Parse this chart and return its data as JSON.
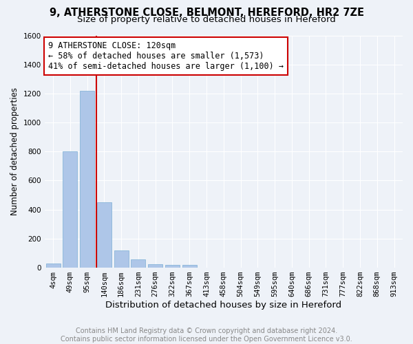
{
  "title1": "9, ATHERSTONE CLOSE, BELMONT, HEREFORD, HR2 7ZE",
  "title2": "Size of property relative to detached houses in Hereford",
  "xlabel": "Distribution of detached houses by size in Hereford",
  "ylabel": "Number of detached properties",
  "categories": [
    "4sqm",
    "49sqm",
    "95sqm",
    "140sqm",
    "186sqm",
    "231sqm",
    "276sqm",
    "322sqm",
    "367sqm",
    "413sqm",
    "458sqm",
    "504sqm",
    "549sqm",
    "595sqm",
    "640sqm",
    "686sqm",
    "731sqm",
    "777sqm",
    "822sqm",
    "868sqm",
    "913sqm"
  ],
  "values": [
    30,
    800,
    1220,
    450,
    120,
    55,
    25,
    20,
    20,
    0,
    0,
    0,
    0,
    0,
    0,
    0,
    0,
    0,
    0,
    0,
    0
  ],
  "bar_color": "#aec6e8",
  "bar_edgecolor": "#7aaed4",
  "vline_color": "#cc0000",
  "ylim": [
    0,
    1600
  ],
  "annotation_text": "9 ATHERSTONE CLOSE: 120sqm\n← 58% of detached houses are smaller (1,573)\n41% of semi-detached houses are larger (1,100) →",
  "annotation_box_color": "#ffffff",
  "annotation_box_edgecolor": "#cc0000",
  "footer_line1": "Contains HM Land Registry data © Crown copyright and database right 2024.",
  "footer_line2": "Contains public sector information licensed under the Open Government Licence v3.0.",
  "background_color": "#eef2f8",
  "plot_background": "#eef2f8",
  "grid_color": "#ffffff",
  "title1_fontsize": 10.5,
  "title2_fontsize": 9.5,
  "xlabel_fontsize": 9.5,
  "ylabel_fontsize": 8.5,
  "tick_fontsize": 7.5,
  "annotation_fontsize": 8.5,
  "footer_fontsize": 7.0
}
